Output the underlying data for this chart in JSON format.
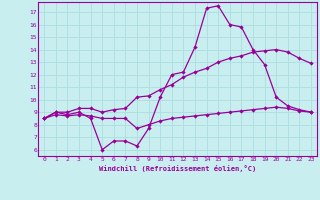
{
  "xlabel": "Windchill (Refroidissement éolien,°C)",
  "bg_color": "#c8eef0",
  "line_color": "#990099",
  "grid_color": "#b0dfe2",
  "xlim_min": -0.5,
  "xlim_max": 23.5,
  "ylim_min": 5.5,
  "ylim_max": 17.8,
  "xticks": [
    0,
    1,
    2,
    3,
    4,
    5,
    6,
    7,
    8,
    9,
    10,
    11,
    12,
    13,
    14,
    15,
    16,
    17,
    18,
    19,
    20,
    21,
    22,
    23
  ],
  "yticks": [
    6,
    7,
    8,
    9,
    10,
    11,
    12,
    13,
    14,
    15,
    16,
    17
  ],
  "curve1_x": [
    0,
    1,
    2,
    3,
    4,
    5,
    6,
    7,
    8,
    9,
    10,
    11,
    12,
    13,
    14,
    15,
    16,
    17,
    18,
    19,
    20,
    21,
    22,
    23
  ],
  "curve1_y": [
    8.5,
    9.0,
    8.8,
    9.0,
    8.5,
    6.0,
    6.7,
    6.7,
    6.3,
    7.7,
    10.2,
    12.0,
    12.2,
    14.2,
    17.3,
    17.5,
    16.0,
    15.8,
    14.0,
    12.8,
    10.2,
    9.5,
    9.2,
    9.0
  ],
  "curve2_x": [
    0,
    1,
    2,
    3,
    4,
    5,
    6,
    7,
    8,
    9,
    10,
    11,
    12,
    13,
    14,
    15,
    16,
    17,
    18,
    19,
    20,
    21,
    22,
    23
  ],
  "curve2_y": [
    8.5,
    9.0,
    9.0,
    9.3,
    9.3,
    9.0,
    9.2,
    9.3,
    10.2,
    10.3,
    10.8,
    11.2,
    11.8,
    12.2,
    12.5,
    13.0,
    13.3,
    13.5,
    13.8,
    13.9,
    14.0,
    13.8,
    13.3,
    12.9
  ],
  "curve3_x": [
    0,
    1,
    2,
    3,
    4,
    5,
    6,
    7,
    8,
    9,
    10,
    11,
    12,
    13,
    14,
    15,
    16,
    17,
    18,
    19,
    20,
    21,
    22,
    23
  ],
  "curve3_y": [
    8.5,
    8.8,
    8.7,
    8.8,
    8.7,
    8.5,
    8.5,
    8.5,
    7.7,
    8.0,
    8.3,
    8.5,
    8.6,
    8.7,
    8.8,
    8.9,
    9.0,
    9.1,
    9.2,
    9.3,
    9.4,
    9.3,
    9.1,
    9.0
  ]
}
